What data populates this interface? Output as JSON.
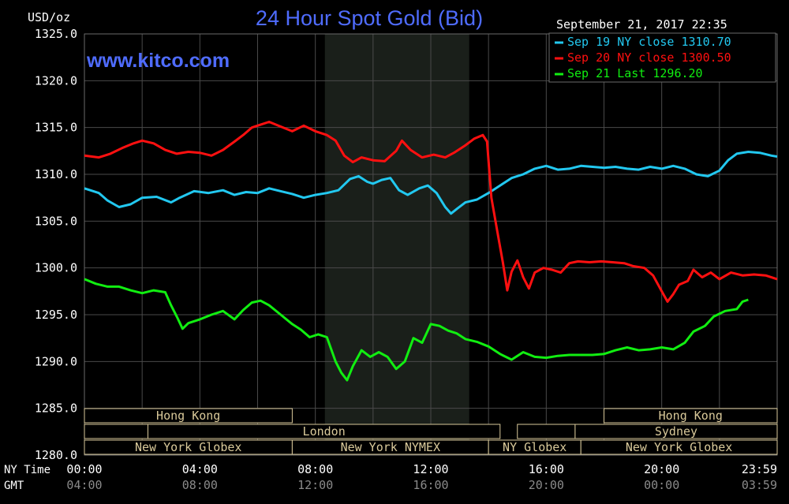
{
  "header": {
    "unit": "USD/oz",
    "title": "24 Hour Spot Gold (Bid)",
    "watermark": "www.kitco.com",
    "timestamp": "September 21, 2017 22:35"
  },
  "axes": {
    "time_row_label": "NY Time",
    "gmt_row_label": "GMT"
  },
  "colors": {
    "background": "#000000",
    "grid": "#4a4a4a",
    "title": "#4f6cff",
    "sep19": "#22c8f0",
    "sep20": "#ff1010",
    "sep21": "#11ee11",
    "session_fill": "#1a1f1a",
    "market_box": "#d9c99a"
  },
  "markets": {
    "row1": [
      {
        "label": "Hong Kong"
      },
      {
        "label": "Hong Kong"
      }
    ],
    "row2": [
      {
        "label": "London"
      },
      {
        "label": "Sydney"
      }
    ],
    "row3": [
      {
        "label": "New York Globex"
      },
      {
        "label": "New York NYMEX"
      },
      {
        "label": "NY Globex"
      },
      {
        "label": "New York Globex"
      }
    ]
  },
  "chart_data": {
    "type": "line",
    "title": "24 Hour Spot Gold (Bid)",
    "ylabel": "USD/oz",
    "ylim": [
      1280.0,
      1325.0
    ],
    "yticks": [
      "1325.0",
      "1320.0",
      "1315.0",
      "1310.0",
      "1305.0",
      "1300.0",
      "1295.0",
      "1290.0",
      "1285.0",
      "1280.0"
    ],
    "xlim": [
      0,
      24
    ],
    "xticks_ny": [
      "00:00",
      "04:00",
      "08:00",
      "12:00",
      "16:00",
      "20:00",
      "23:59"
    ],
    "xticks_gmt": [
      "04:00",
      "08:00",
      "12:00",
      "16:00",
      "20:00",
      "00:00",
      "03:59"
    ],
    "xtick_hours": [
      0,
      4,
      8,
      12,
      16,
      20,
      24
    ],
    "grid": true,
    "legend_position": "top-right",
    "series": [
      {
        "name": "Sep 19 NY close 1310.70",
        "color_key": "sep19",
        "points": [
          [
            0,
            1308.5
          ],
          [
            0.5,
            1308.0
          ],
          [
            0.8,
            1307.2
          ],
          [
            1.2,
            1306.5
          ],
          [
            1.6,
            1306.8
          ],
          [
            2.0,
            1307.5
          ],
          [
            2.5,
            1307.6
          ],
          [
            3.0,
            1307.0
          ],
          [
            3.3,
            1307.5
          ],
          [
            3.8,
            1308.2
          ],
          [
            4.3,
            1308.0
          ],
          [
            4.8,
            1308.3
          ],
          [
            5.2,
            1307.8
          ],
          [
            5.6,
            1308.1
          ],
          [
            6.0,
            1308.0
          ],
          [
            6.4,
            1308.5
          ],
          [
            6.8,
            1308.2
          ],
          [
            7.2,
            1307.9
          ],
          [
            7.6,
            1307.5
          ],
          [
            8.0,
            1307.8
          ],
          [
            8.4,
            1308.0
          ],
          [
            8.8,
            1308.3
          ],
          [
            9.2,
            1309.5
          ],
          [
            9.5,
            1309.8
          ],
          [
            9.8,
            1309.2
          ],
          [
            10.0,
            1309.0
          ],
          [
            10.3,
            1309.4
          ],
          [
            10.6,
            1309.6
          ],
          [
            10.9,
            1308.3
          ],
          [
            11.2,
            1307.8
          ],
          [
            11.6,
            1308.5
          ],
          [
            11.9,
            1308.8
          ],
          [
            12.2,
            1308.0
          ],
          [
            12.5,
            1306.5
          ],
          [
            12.7,
            1305.8
          ],
          [
            12.9,
            1306.3
          ],
          [
            13.2,
            1307.0
          ],
          [
            13.6,
            1307.3
          ],
          [
            14.0,
            1308.0
          ],
          [
            14.4,
            1308.8
          ],
          [
            14.8,
            1309.6
          ],
          [
            15.2,
            1310.0
          ],
          [
            15.6,
            1310.6
          ],
          [
            16.0,
            1310.9
          ],
          [
            16.4,
            1310.5
          ],
          [
            16.8,
            1310.6
          ],
          [
            17.2,
            1310.9
          ],
          [
            17.6,
            1310.8
          ],
          [
            18.0,
            1310.7
          ],
          [
            18.4,
            1310.8
          ],
          [
            18.8,
            1310.6
          ],
          [
            19.2,
            1310.5
          ],
          [
            19.6,
            1310.8
          ],
          [
            20.0,
            1310.6
          ],
          [
            20.4,
            1310.9
          ],
          [
            20.8,
            1310.6
          ],
          [
            21.2,
            1310.0
          ],
          [
            21.6,
            1309.8
          ],
          [
            22.0,
            1310.4
          ],
          [
            22.3,
            1311.5
          ],
          [
            22.6,
            1312.2
          ],
          [
            23.0,
            1312.4
          ],
          [
            23.4,
            1312.3
          ],
          [
            23.8,
            1312.0
          ],
          [
            24.0,
            1311.9
          ]
        ]
      },
      {
        "name": "Sep 20 NY close 1300.50",
        "color_key": "sep20",
        "points": [
          [
            0,
            1312.0
          ],
          [
            0.5,
            1311.8
          ],
          [
            0.9,
            1312.2
          ],
          [
            1.3,
            1312.8
          ],
          [
            1.7,
            1313.3
          ],
          [
            2.0,
            1313.6
          ],
          [
            2.4,
            1313.3
          ],
          [
            2.8,
            1312.6
          ],
          [
            3.2,
            1312.2
          ],
          [
            3.6,
            1312.4
          ],
          [
            4.0,
            1312.3
          ],
          [
            4.4,
            1312.0
          ],
          [
            4.8,
            1312.6
          ],
          [
            5.2,
            1313.5
          ],
          [
            5.5,
            1314.2
          ],
          [
            5.8,
            1315.0
          ],
          [
            6.1,
            1315.3
          ],
          [
            6.4,
            1315.6
          ],
          [
            6.8,
            1315.1
          ],
          [
            7.2,
            1314.6
          ],
          [
            7.6,
            1315.2
          ],
          [
            8.0,
            1314.6
          ],
          [
            8.4,
            1314.2
          ],
          [
            8.7,
            1313.6
          ],
          [
            9.0,
            1312.0
          ],
          [
            9.3,
            1311.3
          ],
          [
            9.6,
            1311.8
          ],
          [
            10.0,
            1311.5
          ],
          [
            10.4,
            1311.4
          ],
          [
            10.8,
            1312.5
          ],
          [
            11.0,
            1313.6
          ],
          [
            11.3,
            1312.6
          ],
          [
            11.7,
            1311.8
          ],
          [
            12.1,
            1312.1
          ],
          [
            12.5,
            1311.8
          ],
          [
            12.8,
            1312.3
          ],
          [
            13.2,
            1313.1
          ],
          [
            13.5,
            1313.8
          ],
          [
            13.8,
            1314.2
          ],
          [
            13.95,
            1313.5
          ],
          [
            14.1,
            1307.5
          ],
          [
            14.3,
            1304.0
          ],
          [
            14.5,
            1300.5
          ],
          [
            14.65,
            1297.6
          ],
          [
            14.8,
            1299.6
          ],
          [
            15.0,
            1300.8
          ],
          [
            15.2,
            1299.0
          ],
          [
            15.4,
            1297.8
          ],
          [
            15.6,
            1299.5
          ],
          [
            15.9,
            1300.0
          ],
          [
            16.2,
            1299.8
          ],
          [
            16.5,
            1299.5
          ],
          [
            16.8,
            1300.5
          ],
          [
            17.1,
            1300.7
          ],
          [
            17.5,
            1300.6
          ],
          [
            17.9,
            1300.7
          ],
          [
            18.3,
            1300.6
          ],
          [
            18.7,
            1300.5
          ],
          [
            19.0,
            1300.2
          ],
          [
            19.4,
            1300.0
          ],
          [
            19.7,
            1299.2
          ],
          [
            20.0,
            1297.5
          ],
          [
            20.2,
            1296.4
          ],
          [
            20.4,
            1297.2
          ],
          [
            20.6,
            1298.2
          ],
          [
            20.9,
            1298.6
          ],
          [
            21.1,
            1299.8
          ],
          [
            21.4,
            1299.0
          ],
          [
            21.7,
            1299.5
          ],
          [
            22.0,
            1298.8
          ],
          [
            22.4,
            1299.5
          ],
          [
            22.8,
            1299.2
          ],
          [
            23.2,
            1299.3
          ],
          [
            23.6,
            1299.2
          ],
          [
            24.0,
            1298.8
          ]
        ]
      },
      {
        "name": "Sep 21 Last 1296.20",
        "color_key": "sep21",
        "points": [
          [
            0,
            1298.8
          ],
          [
            0.4,
            1298.3
          ],
          [
            0.8,
            1298.0
          ],
          [
            1.2,
            1298.0
          ],
          [
            1.6,
            1297.6
          ],
          [
            2.0,
            1297.3
          ],
          [
            2.4,
            1297.6
          ],
          [
            2.8,
            1297.4
          ],
          [
            3.0,
            1296.0
          ],
          [
            3.2,
            1294.8
          ],
          [
            3.4,
            1293.5
          ],
          [
            3.6,
            1294.1
          ],
          [
            4.0,
            1294.5
          ],
          [
            4.4,
            1295.0
          ],
          [
            4.8,
            1295.4
          ],
          [
            5.2,
            1294.5
          ],
          [
            5.5,
            1295.5
          ],
          [
            5.8,
            1296.3
          ],
          [
            6.1,
            1296.5
          ],
          [
            6.4,
            1296.0
          ],
          [
            6.8,
            1295.0
          ],
          [
            7.2,
            1294.0
          ],
          [
            7.5,
            1293.4
          ],
          [
            7.8,
            1292.6
          ],
          [
            8.1,
            1292.9
          ],
          [
            8.4,
            1292.6
          ],
          [
            8.7,
            1290.0
          ],
          [
            8.9,
            1288.8
          ],
          [
            9.1,
            1288.0
          ],
          [
            9.3,
            1289.5
          ],
          [
            9.6,
            1291.2
          ],
          [
            9.9,
            1290.5
          ],
          [
            10.2,
            1291.0
          ],
          [
            10.5,
            1290.5
          ],
          [
            10.8,
            1289.2
          ],
          [
            11.1,
            1290.0
          ],
          [
            11.4,
            1292.5
          ],
          [
            11.7,
            1292.0
          ],
          [
            12.0,
            1294.0
          ],
          [
            12.3,
            1293.8
          ],
          [
            12.6,
            1293.3
          ],
          [
            12.9,
            1293.0
          ],
          [
            13.2,
            1292.4
          ],
          [
            13.6,
            1292.1
          ],
          [
            14.0,
            1291.6
          ],
          [
            14.4,
            1290.8
          ],
          [
            14.8,
            1290.2
          ],
          [
            15.2,
            1291.0
          ],
          [
            15.6,
            1290.5
          ],
          [
            16.0,
            1290.4
          ],
          [
            16.4,
            1290.6
          ],
          [
            16.8,
            1290.7
          ],
          [
            17.2,
            1290.7
          ],
          [
            17.6,
            1290.7
          ],
          [
            18.0,
            1290.8
          ],
          [
            18.4,
            1291.2
          ],
          [
            18.8,
            1291.5
          ],
          [
            19.2,
            1291.2
          ],
          [
            19.6,
            1291.3
          ],
          [
            20.0,
            1291.5
          ],
          [
            20.4,
            1291.3
          ],
          [
            20.8,
            1292.0
          ],
          [
            21.1,
            1293.2
          ],
          [
            21.5,
            1293.8
          ],
          [
            21.8,
            1294.8
          ],
          [
            22.2,
            1295.4
          ],
          [
            22.6,
            1295.6
          ],
          [
            22.8,
            1296.4
          ],
          [
            23.0,
            1296.6
          ]
        ]
      }
    ]
  }
}
